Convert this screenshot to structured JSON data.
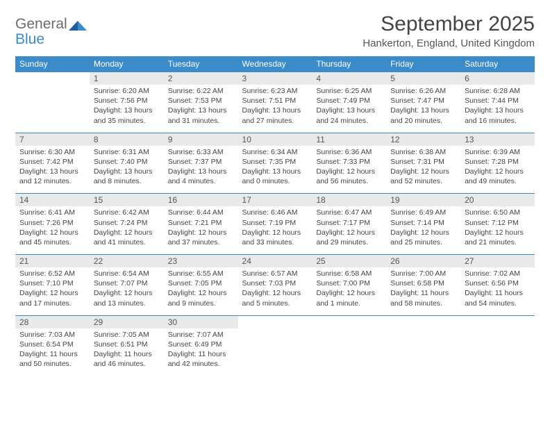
{
  "logo": {
    "line1": "General",
    "line2": "Blue"
  },
  "title": "September 2025",
  "location": "Hankerton, England, United Kingdom",
  "colors": {
    "header_bg": "#3b8bc8",
    "header_text": "#ffffff",
    "daynum_bg": "#e9e9e9",
    "row_border": "#3b8bc8",
    "page_bg": "#ffffff",
    "body_text": "#444444",
    "title_text": "#444444",
    "logo_gray": "#6b6b6b",
    "logo_blue": "#3b8bc8"
  },
  "typography": {
    "month_title_fontsize": 30,
    "location_fontsize": 15,
    "dow_fontsize": 12,
    "daynum_fontsize": 12,
    "detail_fontsize": 10.5,
    "logo_fontsize": 21
  },
  "days_of_week": [
    "Sunday",
    "Monday",
    "Tuesday",
    "Wednesday",
    "Thursday",
    "Friday",
    "Saturday"
  ],
  "weeks": [
    [
      null,
      {
        "n": "1",
        "sunrise": "Sunrise: 6:20 AM",
        "sunset": "Sunset: 7:56 PM",
        "daylight": "Daylight: 13 hours and 35 minutes."
      },
      {
        "n": "2",
        "sunrise": "Sunrise: 6:22 AM",
        "sunset": "Sunset: 7:53 PM",
        "daylight": "Daylight: 13 hours and 31 minutes."
      },
      {
        "n": "3",
        "sunrise": "Sunrise: 6:23 AM",
        "sunset": "Sunset: 7:51 PM",
        "daylight": "Daylight: 13 hours and 27 minutes."
      },
      {
        "n": "4",
        "sunrise": "Sunrise: 6:25 AM",
        "sunset": "Sunset: 7:49 PM",
        "daylight": "Daylight: 13 hours and 24 minutes."
      },
      {
        "n": "5",
        "sunrise": "Sunrise: 6:26 AM",
        "sunset": "Sunset: 7:47 PM",
        "daylight": "Daylight: 13 hours and 20 minutes."
      },
      {
        "n": "6",
        "sunrise": "Sunrise: 6:28 AM",
        "sunset": "Sunset: 7:44 PM",
        "daylight": "Daylight: 13 hours and 16 minutes."
      }
    ],
    [
      {
        "n": "7",
        "sunrise": "Sunrise: 6:30 AM",
        "sunset": "Sunset: 7:42 PM",
        "daylight": "Daylight: 13 hours and 12 minutes."
      },
      {
        "n": "8",
        "sunrise": "Sunrise: 6:31 AM",
        "sunset": "Sunset: 7:40 PM",
        "daylight": "Daylight: 13 hours and 8 minutes."
      },
      {
        "n": "9",
        "sunrise": "Sunrise: 6:33 AM",
        "sunset": "Sunset: 7:37 PM",
        "daylight": "Daylight: 13 hours and 4 minutes."
      },
      {
        "n": "10",
        "sunrise": "Sunrise: 6:34 AM",
        "sunset": "Sunset: 7:35 PM",
        "daylight": "Daylight: 13 hours and 0 minutes."
      },
      {
        "n": "11",
        "sunrise": "Sunrise: 6:36 AM",
        "sunset": "Sunset: 7:33 PM",
        "daylight": "Daylight: 12 hours and 56 minutes."
      },
      {
        "n": "12",
        "sunrise": "Sunrise: 6:38 AM",
        "sunset": "Sunset: 7:31 PM",
        "daylight": "Daylight: 12 hours and 52 minutes."
      },
      {
        "n": "13",
        "sunrise": "Sunrise: 6:39 AM",
        "sunset": "Sunset: 7:28 PM",
        "daylight": "Daylight: 12 hours and 49 minutes."
      }
    ],
    [
      {
        "n": "14",
        "sunrise": "Sunrise: 6:41 AM",
        "sunset": "Sunset: 7:26 PM",
        "daylight": "Daylight: 12 hours and 45 minutes."
      },
      {
        "n": "15",
        "sunrise": "Sunrise: 6:42 AM",
        "sunset": "Sunset: 7:24 PM",
        "daylight": "Daylight: 12 hours and 41 minutes."
      },
      {
        "n": "16",
        "sunrise": "Sunrise: 6:44 AM",
        "sunset": "Sunset: 7:21 PM",
        "daylight": "Daylight: 12 hours and 37 minutes."
      },
      {
        "n": "17",
        "sunrise": "Sunrise: 6:46 AM",
        "sunset": "Sunset: 7:19 PM",
        "daylight": "Daylight: 12 hours and 33 minutes."
      },
      {
        "n": "18",
        "sunrise": "Sunrise: 6:47 AM",
        "sunset": "Sunset: 7:17 PM",
        "daylight": "Daylight: 12 hours and 29 minutes."
      },
      {
        "n": "19",
        "sunrise": "Sunrise: 6:49 AM",
        "sunset": "Sunset: 7:14 PM",
        "daylight": "Daylight: 12 hours and 25 minutes."
      },
      {
        "n": "20",
        "sunrise": "Sunrise: 6:50 AM",
        "sunset": "Sunset: 7:12 PM",
        "daylight": "Daylight: 12 hours and 21 minutes."
      }
    ],
    [
      {
        "n": "21",
        "sunrise": "Sunrise: 6:52 AM",
        "sunset": "Sunset: 7:10 PM",
        "daylight": "Daylight: 12 hours and 17 minutes."
      },
      {
        "n": "22",
        "sunrise": "Sunrise: 6:54 AM",
        "sunset": "Sunset: 7:07 PM",
        "daylight": "Daylight: 12 hours and 13 minutes."
      },
      {
        "n": "23",
        "sunrise": "Sunrise: 6:55 AM",
        "sunset": "Sunset: 7:05 PM",
        "daylight": "Daylight: 12 hours and 9 minutes."
      },
      {
        "n": "24",
        "sunrise": "Sunrise: 6:57 AM",
        "sunset": "Sunset: 7:03 PM",
        "daylight": "Daylight: 12 hours and 5 minutes."
      },
      {
        "n": "25",
        "sunrise": "Sunrise: 6:58 AM",
        "sunset": "Sunset: 7:00 PM",
        "daylight": "Daylight: 12 hours and 1 minute."
      },
      {
        "n": "26",
        "sunrise": "Sunrise: 7:00 AM",
        "sunset": "Sunset: 6:58 PM",
        "daylight": "Daylight: 11 hours and 58 minutes."
      },
      {
        "n": "27",
        "sunrise": "Sunrise: 7:02 AM",
        "sunset": "Sunset: 6:56 PM",
        "daylight": "Daylight: 11 hours and 54 minutes."
      }
    ],
    [
      {
        "n": "28",
        "sunrise": "Sunrise: 7:03 AM",
        "sunset": "Sunset: 6:54 PM",
        "daylight": "Daylight: 11 hours and 50 minutes."
      },
      {
        "n": "29",
        "sunrise": "Sunrise: 7:05 AM",
        "sunset": "Sunset: 6:51 PM",
        "daylight": "Daylight: 11 hours and 46 minutes."
      },
      {
        "n": "30",
        "sunrise": "Sunrise: 7:07 AM",
        "sunset": "Sunset: 6:49 PM",
        "daylight": "Daylight: 11 hours and 42 minutes."
      },
      null,
      null,
      null,
      null
    ]
  ]
}
